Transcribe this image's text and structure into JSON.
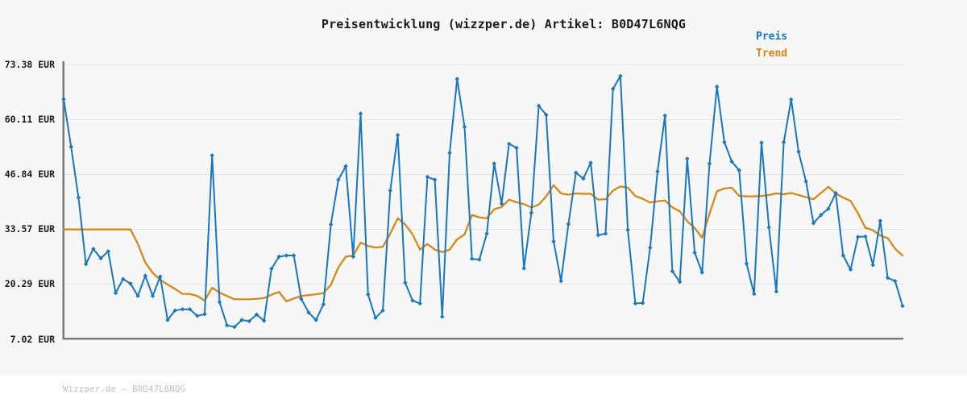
{
  "title": "Preisentwicklung (wizzper.de) Artikel: B0D47L6NQG",
  "watermark": "Wizzper.de — B0D47L6NQG",
  "legend": {
    "position": "top-right",
    "items": [
      {
        "label": "Preis",
        "color": "#1777c2"
      },
      {
        "label": "Trend",
        "color": "#d9830e"
      }
    ]
  },
  "colors": {
    "background": "#f7f7f7",
    "footer_background": "#ffffff",
    "grid": "#e5e5e5",
    "axis": "#7a7a7a",
    "price_line": "#1777c2",
    "trend_line": "#d9830e",
    "watermark_text": "#bfbfbf"
  },
  "chart_data": {
    "type": "line",
    "title": "Preisentwicklung (wizzper.de) Artikel: B0D47L6NQG",
    "xlabel": "",
    "ylabel": "EUR",
    "grid": true,
    "legend_position": "top-right",
    "y_axis": {
      "unit": "EUR",
      "range": [
        7.02,
        73.38
      ],
      "tick_values": [
        73.38,
        60.11,
        46.84,
        33.57,
        20.29,
        7.02
      ],
      "tick_labels": [
        "73.38 EUR",
        "60.11 EUR",
        "46.84 EUR",
        "33.57 EUR",
        "20.29 EUR",
        "7.02 EUR"
      ]
    },
    "x_axis": {
      "tick_labels": []
    },
    "series": [
      {
        "name": "Preis",
        "color": "#1777c2",
        "marker": "diamond",
        "values": [
          65.0,
          53.5,
          41.2,
          25.1,
          28.8,
          26.5,
          28.2,
          18.1,
          21.5,
          20.4,
          17.4,
          22.3,
          17.4,
          22.1,
          11.6,
          13.9,
          14.2,
          14.2,
          12.6,
          13.0,
          51.4,
          15.9,
          10.3,
          9.9,
          11.6,
          11.3,
          12.9,
          11.4,
          24.0,
          26.9,
          27.2,
          27.2,
          16.7,
          13.4,
          11.6,
          15.4,
          34.7,
          45.5,
          48.8,
          26.9,
          61.5,
          17.8,
          12.1,
          13.9,
          42.9,
          56.3,
          20.6,
          16.3,
          15.6,
          46.2,
          45.5,
          12.4,
          52.0,
          69.9,
          58.3,
          26.4,
          26.2,
          32.5,
          49.4,
          39.7,
          54.2,
          53.2,
          24.1,
          37.5,
          63.4,
          61.2,
          30.6,
          21.0,
          34.8,
          47.2,
          45.8,
          49.6,
          32.1,
          32.5,
          67.5,
          70.6,
          33.4,
          15.6,
          15.7,
          29.1,
          47.5,
          61.0,
          23.4,
          20.8,
          50.6,
          27.9,
          23.1,
          49.4,
          68.0,
          54.6,
          49.9,
          47.8,
          25.2,
          17.9,
          54.5,
          34.0,
          18.5,
          54.6,
          64.9,
          52.3,
          45.1,
          35.0,
          37.0,
          38.5,
          42.3,
          27.2,
          23.8,
          31.7,
          31.8,
          24.9,
          35.6,
          21.8,
          21.0,
          15.0
        ]
      },
      {
        "name": "Trend",
        "color": "#d9830e",
        "marker": "none",
        "values": [
          33.5,
          33.5,
          33.5,
          33.5,
          33.5,
          33.5,
          33.5,
          33.5,
          33.5,
          33.5,
          30.0,
          25.5,
          23.0,
          21.3,
          20.2,
          19.1,
          17.9,
          17.9,
          17.4,
          16.3,
          19.4,
          18.2,
          17.4,
          16.6,
          16.6,
          16.6,
          16.7,
          16.9,
          17.7,
          18.4,
          16.1,
          16.8,
          17.4,
          17.6,
          17.8,
          18.1,
          20.1,
          24.3,
          26.9,
          27.2,
          30.3,
          29.5,
          29.1,
          29.3,
          32.5,
          36.2,
          34.7,
          32.3,
          28.6,
          30.0,
          28.6,
          28.0,
          28.6,
          31.1,
          32.3,
          37.0,
          36.4,
          36.2,
          38.4,
          38.9,
          40.7,
          40.1,
          39.6,
          38.8,
          39.5,
          41.5,
          44.2,
          42.2,
          41.9,
          42.2,
          42.1,
          42.1,
          40.7,
          40.8,
          42.9,
          43.9,
          43.6,
          41.6,
          40.9,
          40.0,
          40.3,
          40.5,
          38.8,
          37.9,
          35.5,
          33.8,
          31.5,
          37.3,
          42.7,
          43.4,
          43.6,
          41.6,
          41.5,
          41.5,
          41.6,
          41.8,
          42.2,
          42.0,
          42.3,
          41.8,
          41.3,
          40.8,
          42.3,
          43.8,
          42.2,
          41.2,
          40.4,
          37.4,
          33.9,
          33.3,
          32.0,
          31.4,
          28.8,
          27.2
        ]
      }
    ]
  }
}
